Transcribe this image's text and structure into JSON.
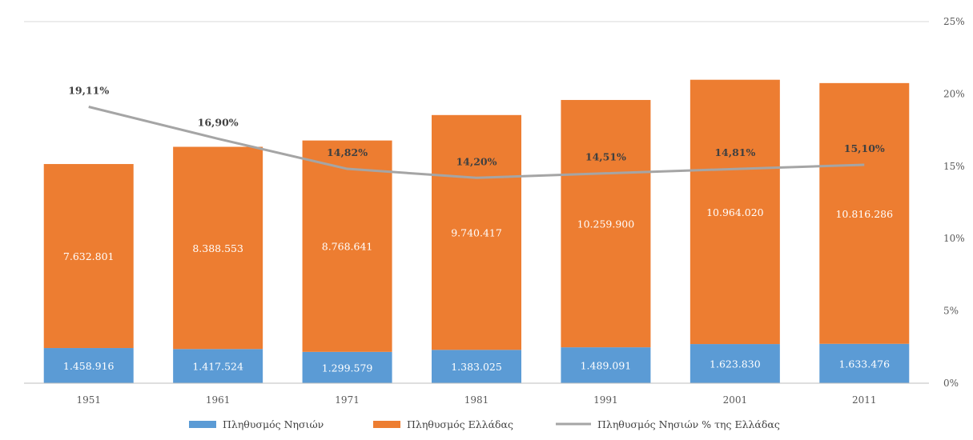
{
  "chart_data": {
    "type": "bar",
    "stacked": true,
    "categories": [
      "1951",
      "1961",
      "1971",
      "1981",
      "1991",
      "2001",
      "2011"
    ],
    "series": [
      {
        "name": "Πληθυσμός Νησιών",
        "kind": "bar",
        "color": "#5B9BD5",
        "values": [
          1458916,
          1417524,
          1299579,
          1383025,
          1489091,
          1623830,
          1633476
        ],
        "labels": [
          "1.458.916",
          "1.417.524",
          "1.299.579",
          "1.383.025",
          "1.489.091",
          "1.623.830",
          "1.633.476"
        ]
      },
      {
        "name": "Πληθυσμός Ελλάδας",
        "kind": "bar",
        "color": "#ED7D31",
        "values": [
          7632801,
          8388553,
          8768641,
          9740417,
          10259900,
          10964020,
          10816286
        ],
        "labels": [
          "7.632.801",
          "8.388.553",
          "8.768.641",
          "9.740.417",
          "10.259.900",
          "10.964.020",
          "10.816.286"
        ]
      },
      {
        "name": "Πληθυσμός Νησιών % της Ελλάδας",
        "kind": "line",
        "axis": "right",
        "color": "#A5A5A5",
        "values": [
          19.11,
          16.9,
          14.82,
          14.2,
          14.51,
          14.81,
          15.1
        ],
        "labels": [
          "19,11%",
          "16,90%",
          "14,82%",
          "14,20%",
          "14,51%",
          "14,81%",
          "15,10%"
        ]
      }
    ],
    "y2_ticks": [
      "0%",
      "5%",
      "10%",
      "15%",
      "20%",
      "25%"
    ],
    "y2lim": [
      0,
      25
    ],
    "grid": false,
    "legend": "bottom"
  }
}
